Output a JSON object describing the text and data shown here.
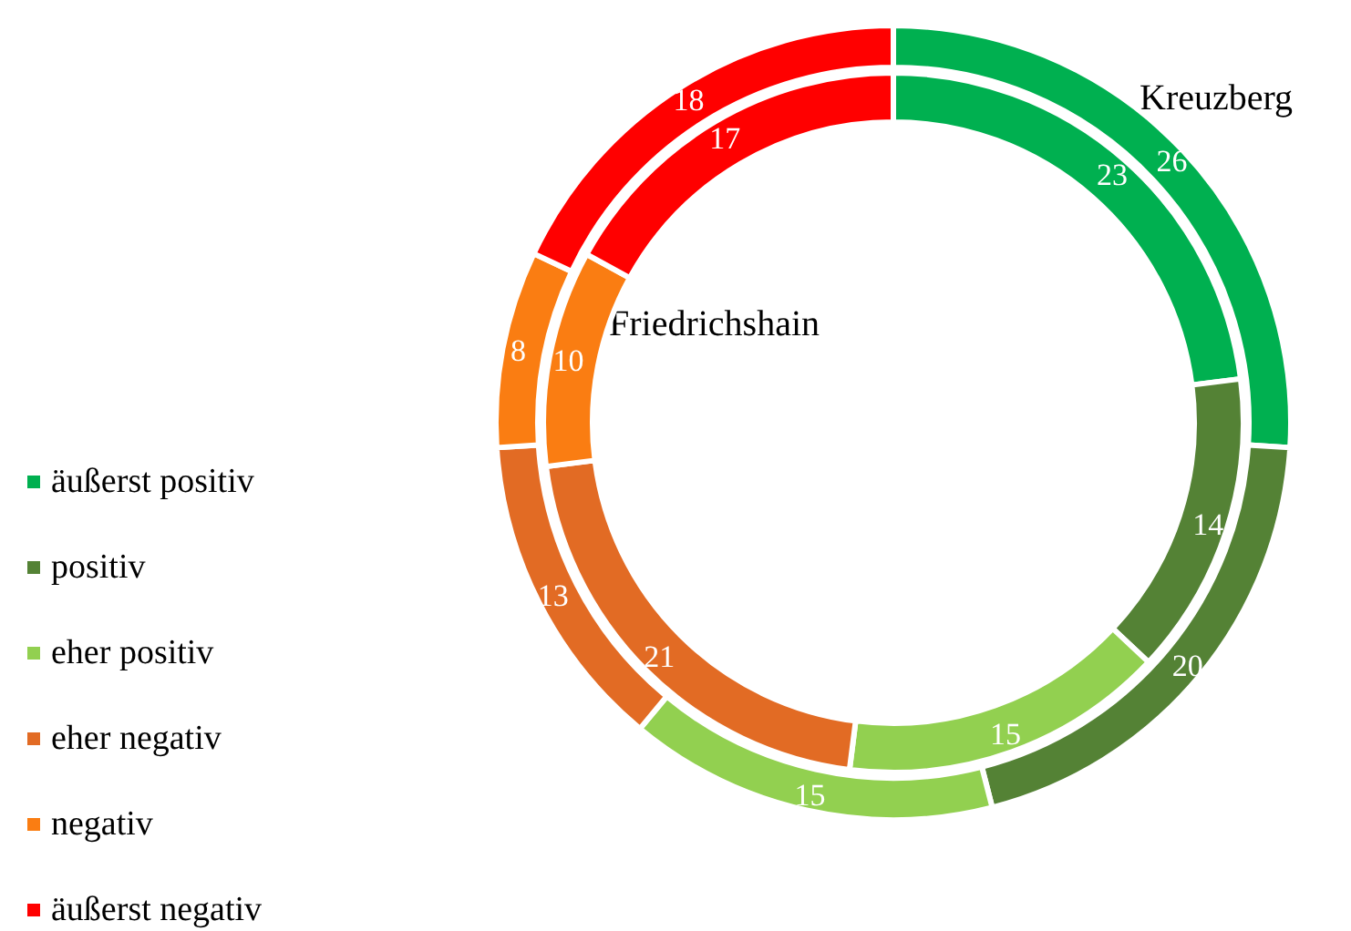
{
  "chart_data": {
    "type": "donut",
    "categories": [
      "äußerst positiv",
      "positiv",
      "eher positiv",
      "eher negativ",
      "negativ",
      "äußerst negativ"
    ],
    "colors": [
      "#00b050",
      "#548235",
      "#92d050",
      "#e26b24",
      "#fa7d12",
      "#ff0000"
    ],
    "series": [
      {
        "name": "Kreuzberg",
        "values": [
          26,
          20,
          15,
          13,
          8,
          18
        ]
      },
      {
        "name": "Friedrichshain",
        "values": [
          23,
          14,
          15,
          21,
          10,
          17
        ]
      }
    ],
    "data_labels": true,
    "legend": "left"
  }
}
